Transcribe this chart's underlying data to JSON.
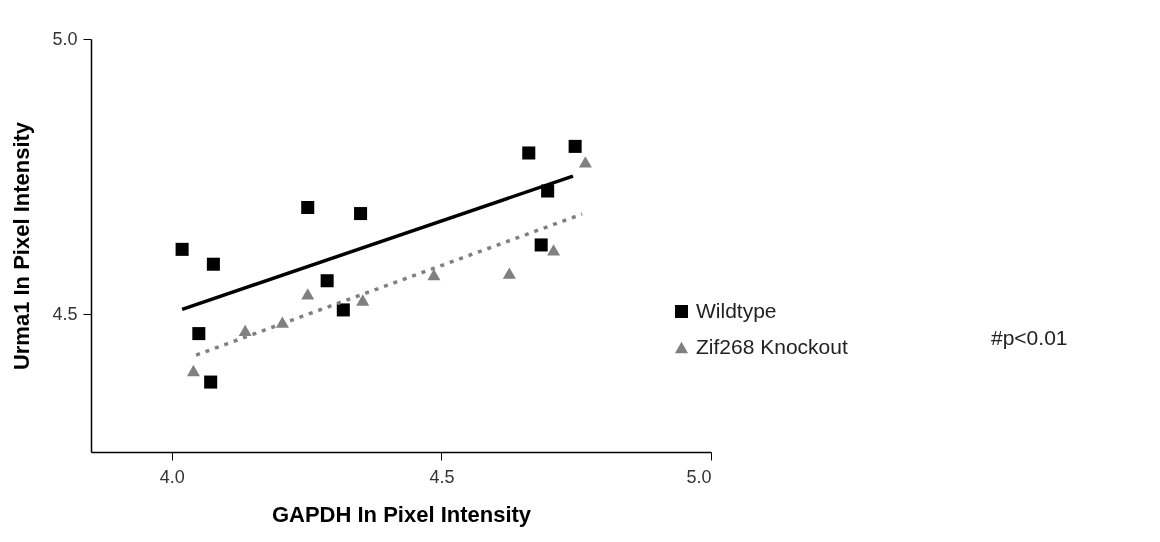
{
  "chart_data": {
    "type": "scatter",
    "xlabel": "GAPDH In Pixel Intensity",
    "ylabel": "Urma1 In Pixel Intensity",
    "xlim": [
      3.85,
      5.0
    ],
    "xticks": [
      {
        "value": 4.0,
        "label": "4.0"
      },
      4.5,
      {
        "value": 5.0,
        "label": "5.0"
      }
    ],
    "ylim": [
      4.25,
      5.0
    ],
    "yticks": [
      {
        "value": 4.5,
        "label": "4.5"
      },
      {
        "value": 5.0,
        "label": "5.0"
      }
    ],
    "grid": false,
    "legend": "right",
    "annotations": [
      "#p<0.01"
    ],
    "series": [
      {
        "name": "Wildtype",
        "marker": "square",
        "color": "#000000",
        "x": [
          4.019,
          4.077,
          4.05,
          4.072,
          4.252,
          4.35,
          4.288,
          4.318,
          4.662,
          4.748,
          4.697,
          4.685
        ],
        "values": [
          4.618,
          4.591,
          4.465,
          4.377,
          4.694,
          4.683,
          4.561,
          4.508,
          4.793,
          4.805,
          4.724,
          4.626
        ]
      },
      {
        "name": "Zif268 Knockout",
        "marker": "triangle",
        "color": "#808080",
        "x": [
          4.04,
          4.136,
          4.205,
          4.252,
          4.354,
          4.486,
          4.626,
          4.708,
          4.767
        ],
        "values": [
          4.398,
          4.471,
          4.486,
          4.537,
          4.526,
          4.572,
          4.575,
          4.617,
          4.777
        ]
      },
      {
        "type": "line",
        "line_style": "solid",
        "color": "#000000",
        "x": [
          4.019,
          4.744
        ],
        "values": [
          4.509,
          4.751
        ]
      },
      {
        "type": "line",
        "line_style": "dotted",
        "color": "#808080",
        "x": [
          4.045,
          4.761
        ],
        "values": [
          4.426,
          4.682
        ]
      }
    ]
  }
}
